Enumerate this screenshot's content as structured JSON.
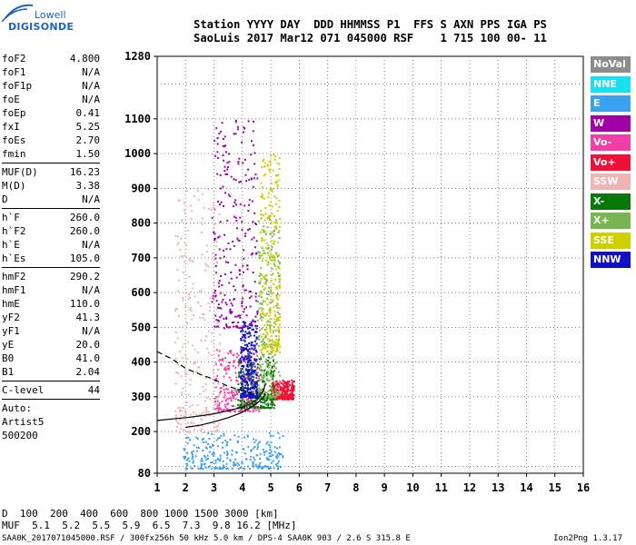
{
  "logo": {
    "line1": "Lowell",
    "line2": "DIGISONDE"
  },
  "header": {
    "line1": "Station YYYY DAY  DDD HHMMSS P1  FFS S AXN PPS IGA PS",
    "line2": "SaoLuis 2017 Mar12 071 045000 RSF    1 715 100 00- 11"
  },
  "params": [
    {
      "name": "foF2",
      "value": "4.800"
    },
    {
      "name": "foF1",
      "value": "N/A"
    },
    {
      "name": "foF1p",
      "value": "N/A"
    },
    {
      "name": "foE",
      "value": "N/A"
    },
    {
      "name": "foEp",
      "value": "0.41"
    },
    {
      "name": "fxI",
      "value": "5.25"
    },
    {
      "name": "foEs",
      "value": "2.70"
    },
    {
      "name": "fmin",
      "value": "1.50"
    },
    {
      "sep": true
    },
    {
      "name": "MUF(D)",
      "value": "16.23"
    },
    {
      "name": "M(D)",
      "value": "3.38"
    },
    {
      "name": "D",
      "value": "N/A"
    },
    {
      "sep": true
    },
    {
      "name": "h`F",
      "value": "260.0"
    },
    {
      "name": "h`F2",
      "value": "260.0"
    },
    {
      "name": "h`E",
      "value": "N/A"
    },
    {
      "name": "h`Es",
      "value": "105.0"
    },
    {
      "sep": true
    },
    {
      "name": "hmF2",
      "value": "290.2"
    },
    {
      "name": "hmF1",
      "value": "N/A"
    },
    {
      "name": "hmE",
      "value": "110.0"
    },
    {
      "name": "yF2",
      "value": "41.3"
    },
    {
      "name": "yF1",
      "value": "N/A"
    },
    {
      "name": "yE",
      "value": "20.0"
    },
    {
      "name": "B0",
      "value": "41.0"
    },
    {
      "name": "B1",
      "value": "2.04"
    },
    {
      "sep": true
    },
    {
      "name": "C-level",
      "value": "44"
    },
    {
      "sep": true
    },
    {
      "text": "Auto:"
    },
    {
      "text": "Artist5"
    },
    {
      "text": "500200"
    }
  ],
  "legend": [
    {
      "label": "NoVal",
      "color": "#8c8c8c"
    },
    {
      "label": "NNE",
      "color": "#18e0f0"
    },
    {
      "label": "E",
      "color": "#3aa0f0"
    },
    {
      "label": "W",
      "color": "#a000a8"
    },
    {
      "label": "Vo-",
      "color": "#f040a8"
    },
    {
      "label": "Vo+",
      "color": "#f01038"
    },
    {
      "label": "SSW",
      "color": "#f0b4b4"
    },
    {
      "label": "X-",
      "color": "#087808"
    },
    {
      "label": "X+",
      "color": "#78b450"
    },
    {
      "label": "SSE",
      "color": "#d0d000"
    },
    {
      "label": "NNW",
      "color": "#1010c8"
    }
  ],
  "muf_table": {
    "row1_label": "D",
    "row1_values": "  100  200  400  600  800 1000 1500 3000 [km]",
    "row2_label": "MUF",
    "row2_values": "  5.1  5.2  5.5  5.9  6.5  7.3  9.8 16.2 [MHz]"
  },
  "footer": {
    "left": "SAA0K_2017071045000.RSF / 300fx256h 50 kHz 5.0 km / DPS-4 SAA0K 903 / 2.6 S 315.8 E",
    "right": "Ion2Png 1.3.17"
  },
  "chart_data": {
    "type": "scatter",
    "xlabel": "",
    "ylabel": "",
    "xlim": [
      1,
      16
    ],
    "ylim": [
      80,
      1280
    ],
    "x_ticks": [
      1,
      2,
      3,
      4,
      5,
      6,
      7,
      8,
      9,
      10,
      11,
      12,
      13,
      14,
      15,
      16
    ],
    "y_ticks": [
      80,
      200,
      300,
      400,
      500,
      600,
      700,
      800,
      900,
      1000,
      1100,
      1280
    ],
    "y_gridlines": [
      100,
      200,
      300,
      400,
      500,
      600,
      700,
      800,
      900,
      1000,
      1100,
      1200
    ],
    "grid": true,
    "traces": [
      {
        "name": "",
        "style": "solid",
        "points": [
          [
            1.0,
            232
          ],
          [
            1.5,
            236
          ],
          [
            2.0,
            240
          ],
          [
            2.5,
            245
          ],
          [
            3.0,
            251
          ],
          [
            3.5,
            260
          ],
          [
            4.0,
            270
          ],
          [
            4.3,
            280
          ],
          [
            4.55,
            295
          ],
          [
            4.75,
            320
          ],
          [
            4.8,
            335
          ]
        ]
      },
      {
        "name": "",
        "style": "solid",
        "points": [
          [
            2.0,
            212
          ],
          [
            2.5,
            218
          ],
          [
            3.0,
            228
          ],
          [
            3.5,
            240
          ],
          [
            3.9,
            252
          ],
          [
            4.2,
            265
          ],
          [
            4.5,
            280
          ],
          [
            4.75,
            300
          ],
          [
            4.8,
            310
          ]
        ]
      },
      {
        "name": "",
        "style": "dashed",
        "points": [
          [
            1.0,
            430
          ],
          [
            1.5,
            410
          ],
          [
            2.0,
            382
          ],
          [
            2.5,
            365
          ],
          [
            3.0,
            350
          ],
          [
            3.5,
            330
          ],
          [
            4.0,
            318
          ],
          [
            4.3,
            310
          ]
        ]
      }
    ],
    "echo_regions": [
      {
        "polarization": "Vo-",
        "x": [
          3.0,
          4.6
        ],
        "y": [
          260,
          440
        ]
      },
      {
        "polarization": "Vo+",
        "x": [
          5.0,
          5.8
        ],
        "y": [
          295,
          350
        ]
      },
      {
        "polarization": "X-",
        "x": [
          3.8,
          5.1
        ],
        "y": [
          270,
          420
        ]
      },
      {
        "polarization": "X+",
        "x": [
          4.5,
          5.3
        ],
        "y": [
          300,
          820
        ]
      },
      {
        "polarization": "SSE",
        "x": [
          4.6,
          5.3
        ],
        "y": [
          430,
          1000
        ]
      },
      {
        "polarization": "NNW",
        "x": [
          3.9,
          4.5
        ],
        "y": [
          300,
          520
        ]
      },
      {
        "polarization": "W",
        "x": [
          2.9,
          4.5
        ],
        "y": [
          500,
          1100
        ]
      },
      {
        "polarization": "SSW",
        "x": [
          1.6,
          3.2
        ],
        "y": [
          200,
          900
        ]
      },
      {
        "polarization": "E",
        "x": [
          1.9,
          5.4
        ],
        "y": [
          95,
          200
        ]
      }
    ]
  }
}
